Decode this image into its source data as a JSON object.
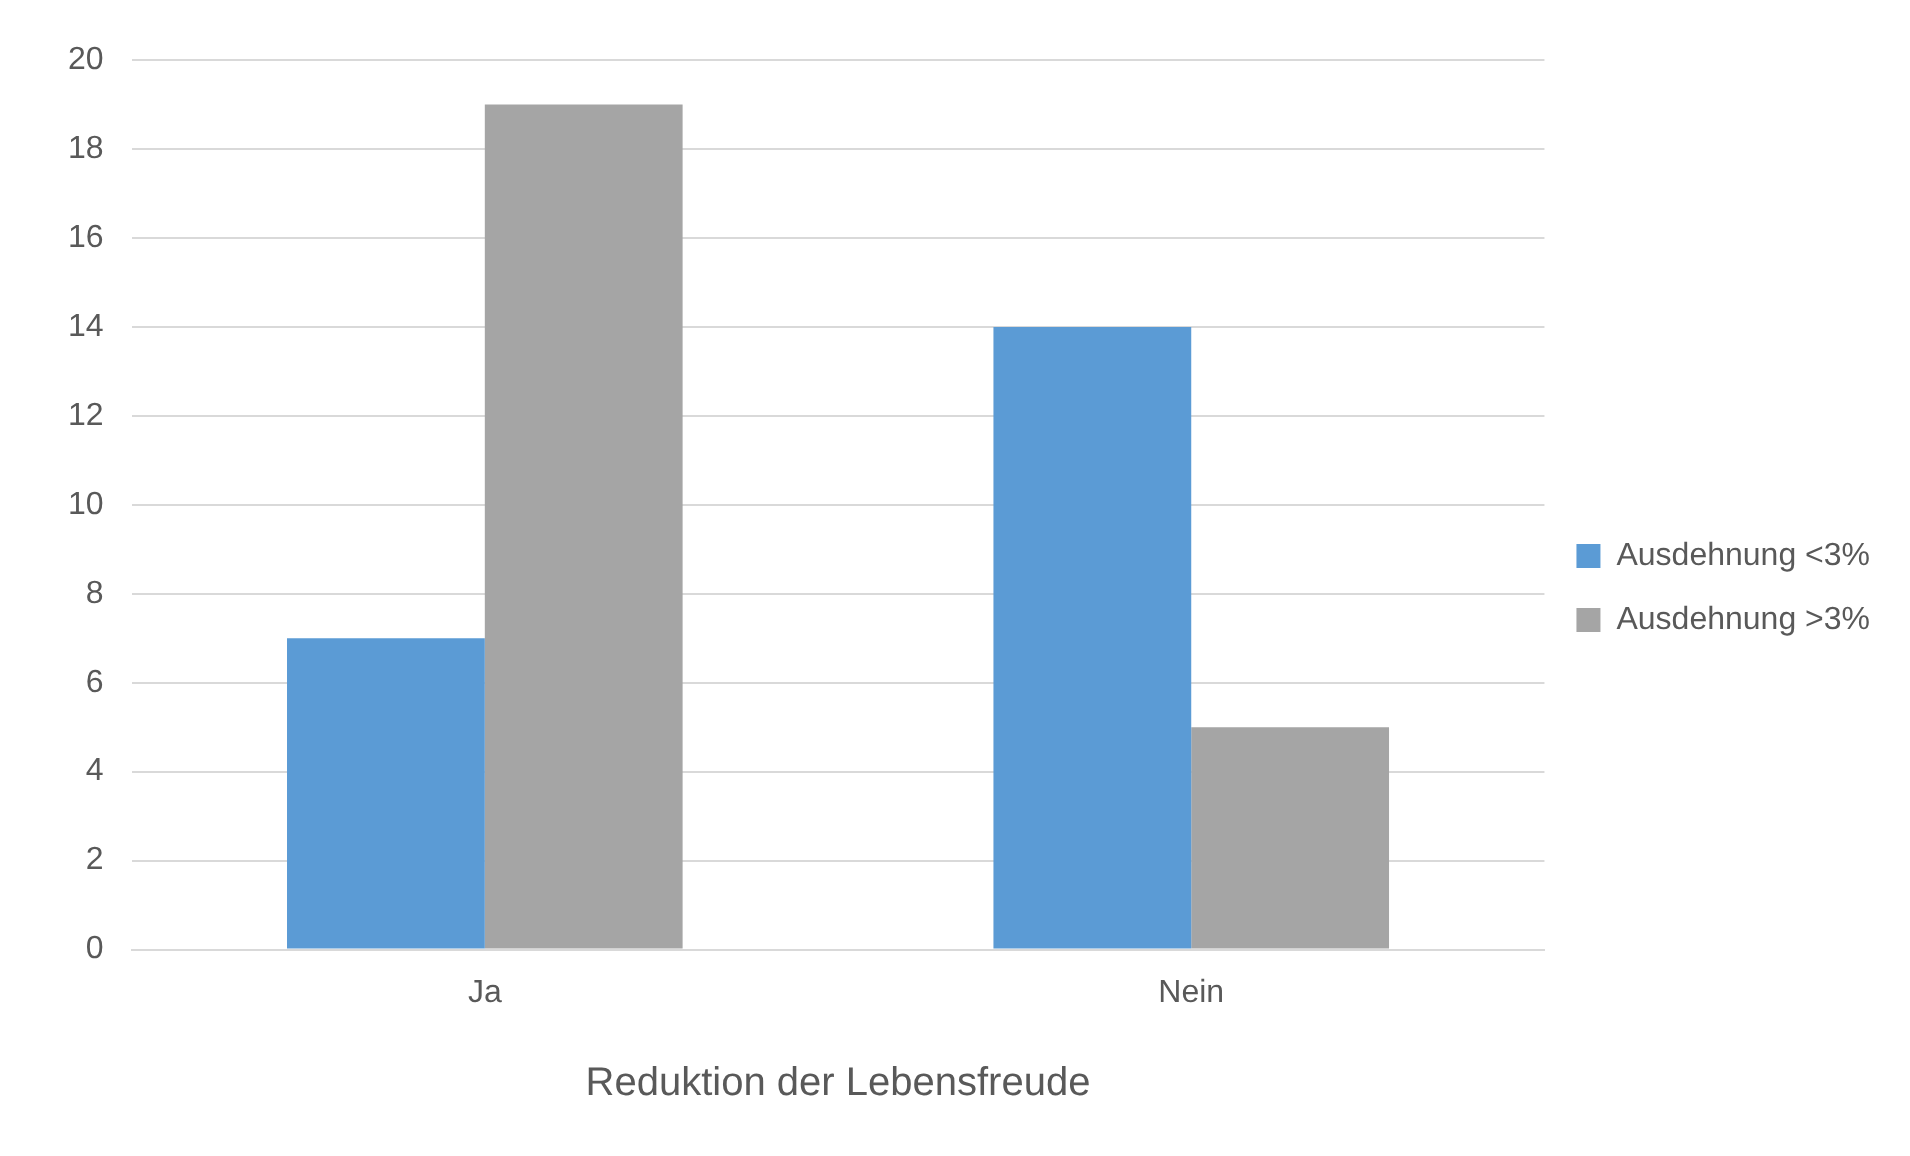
{
  "chart_data": {
    "type": "bar",
    "xlabel": "Reduktion der Lebensfreude",
    "categories": [
      "Ja",
      "Nein"
    ],
    "series": [
      {
        "name": "Ausdehnung <3%",
        "color": "#5b9bd5",
        "values": [
          7,
          14
        ]
      },
      {
        "name": "Ausdehnung >3%",
        "color": "#a5a5a5",
        "values": [
          19,
          5
        ]
      }
    ],
    "ylim": [
      0,
      20
    ],
    "yticks": [
      0,
      2,
      4,
      6,
      8,
      10,
      12,
      14,
      16,
      18,
      20
    ],
    "grid": "y",
    "legend": "right"
  }
}
